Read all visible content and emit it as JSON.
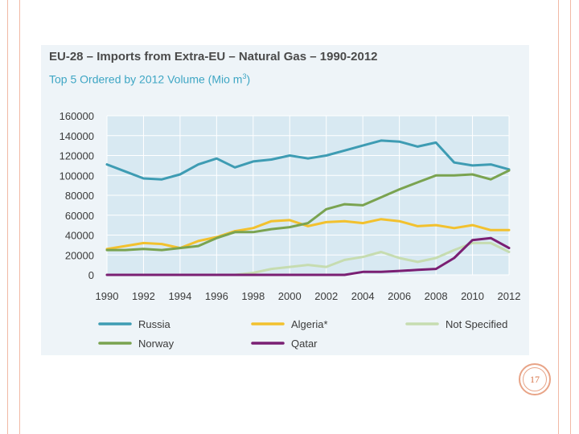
{
  "slide": {
    "number": "17"
  },
  "chart_data": {
    "type": "line",
    "title": "EU-28 – Imports from Extra-EU – Natural Gas – 1990-2012",
    "subtitle": "Top 5 Ordered by 2012 Volume (Mio m",
    "subtitle_sup": "3",
    "subtitle_end": ")",
    "xlabel": "",
    "ylabel": "",
    "ylim": [
      0,
      160000
    ],
    "xlim": [
      1990,
      2012
    ],
    "grid": true,
    "legend_position": "bottom",
    "x": [
      1990,
      1991,
      1992,
      1993,
      1994,
      1995,
      1996,
      1997,
      1998,
      1999,
      2000,
      2001,
      2002,
      2003,
      2004,
      2005,
      2006,
      2007,
      2008,
      2009,
      2010,
      2011,
      2012
    ],
    "x_tick_labels": [
      "1990",
      "1992",
      "1994",
      "1996",
      "1998",
      "2000",
      "2002",
      "2004",
      "2006",
      "2008",
      "2010",
      "2012"
    ],
    "y_tick_labels": [
      "160000",
      "140000",
      "120000",
      "100000",
      "80000",
      "60000",
      "40000",
      "20000",
      "0"
    ],
    "colors": {
      "Russia": "#3e9cb3",
      "Norway": "#7aa350",
      "Algeria*": "#f2c12e",
      "Qatar": "#7a1f73",
      "Not Specified": "#c6dcb0"
    },
    "series": [
      {
        "name": "Russia",
        "values": [
          111000,
          104000,
          97000,
          96000,
          101000,
          111000,
          117000,
          108000,
          114000,
          116000,
          120000,
          117000,
          120000,
          125000,
          130000,
          135000,
          134000,
          129000,
          133000,
          113000,
          110000,
          111000,
          106000
        ]
      },
      {
        "name": "Algeria*",
        "values": [
          26000,
          29000,
          32000,
          31000,
          27000,
          34000,
          38000,
          44000,
          47000,
          54000,
          55000,
          49000,
          53000,
          54000,
          52000,
          56000,
          54000,
          49000,
          50000,
          47000,
          50000,
          45000,
          45000
        ]
      },
      {
        "name": "Not Specified",
        "values": [
          0,
          0,
          0,
          0,
          0,
          0,
          0,
          0,
          2000,
          6000,
          8000,
          10000,
          8000,
          15000,
          18000,
          23000,
          17000,
          13000,
          17000,
          25000,
          32000,
          32000,
          23000
        ]
      },
      {
        "name": "Norway",
        "values": [
          25000,
          25000,
          26000,
          25000,
          27000,
          29000,
          37000,
          43000,
          43000,
          46000,
          48000,
          52000,
          66000,
          71000,
          70000,
          78000,
          86000,
          93000,
          100000,
          100000,
          101000,
          96000,
          105000
        ]
      },
      {
        "name": "Qatar",
        "values": [
          0,
          0,
          0,
          0,
          0,
          0,
          0,
          0,
          0,
          0,
          0,
          0,
          0,
          0,
          3000,
          3000,
          4000,
          5000,
          6000,
          17000,
          35000,
          37000,
          27000
        ]
      }
    ]
  }
}
